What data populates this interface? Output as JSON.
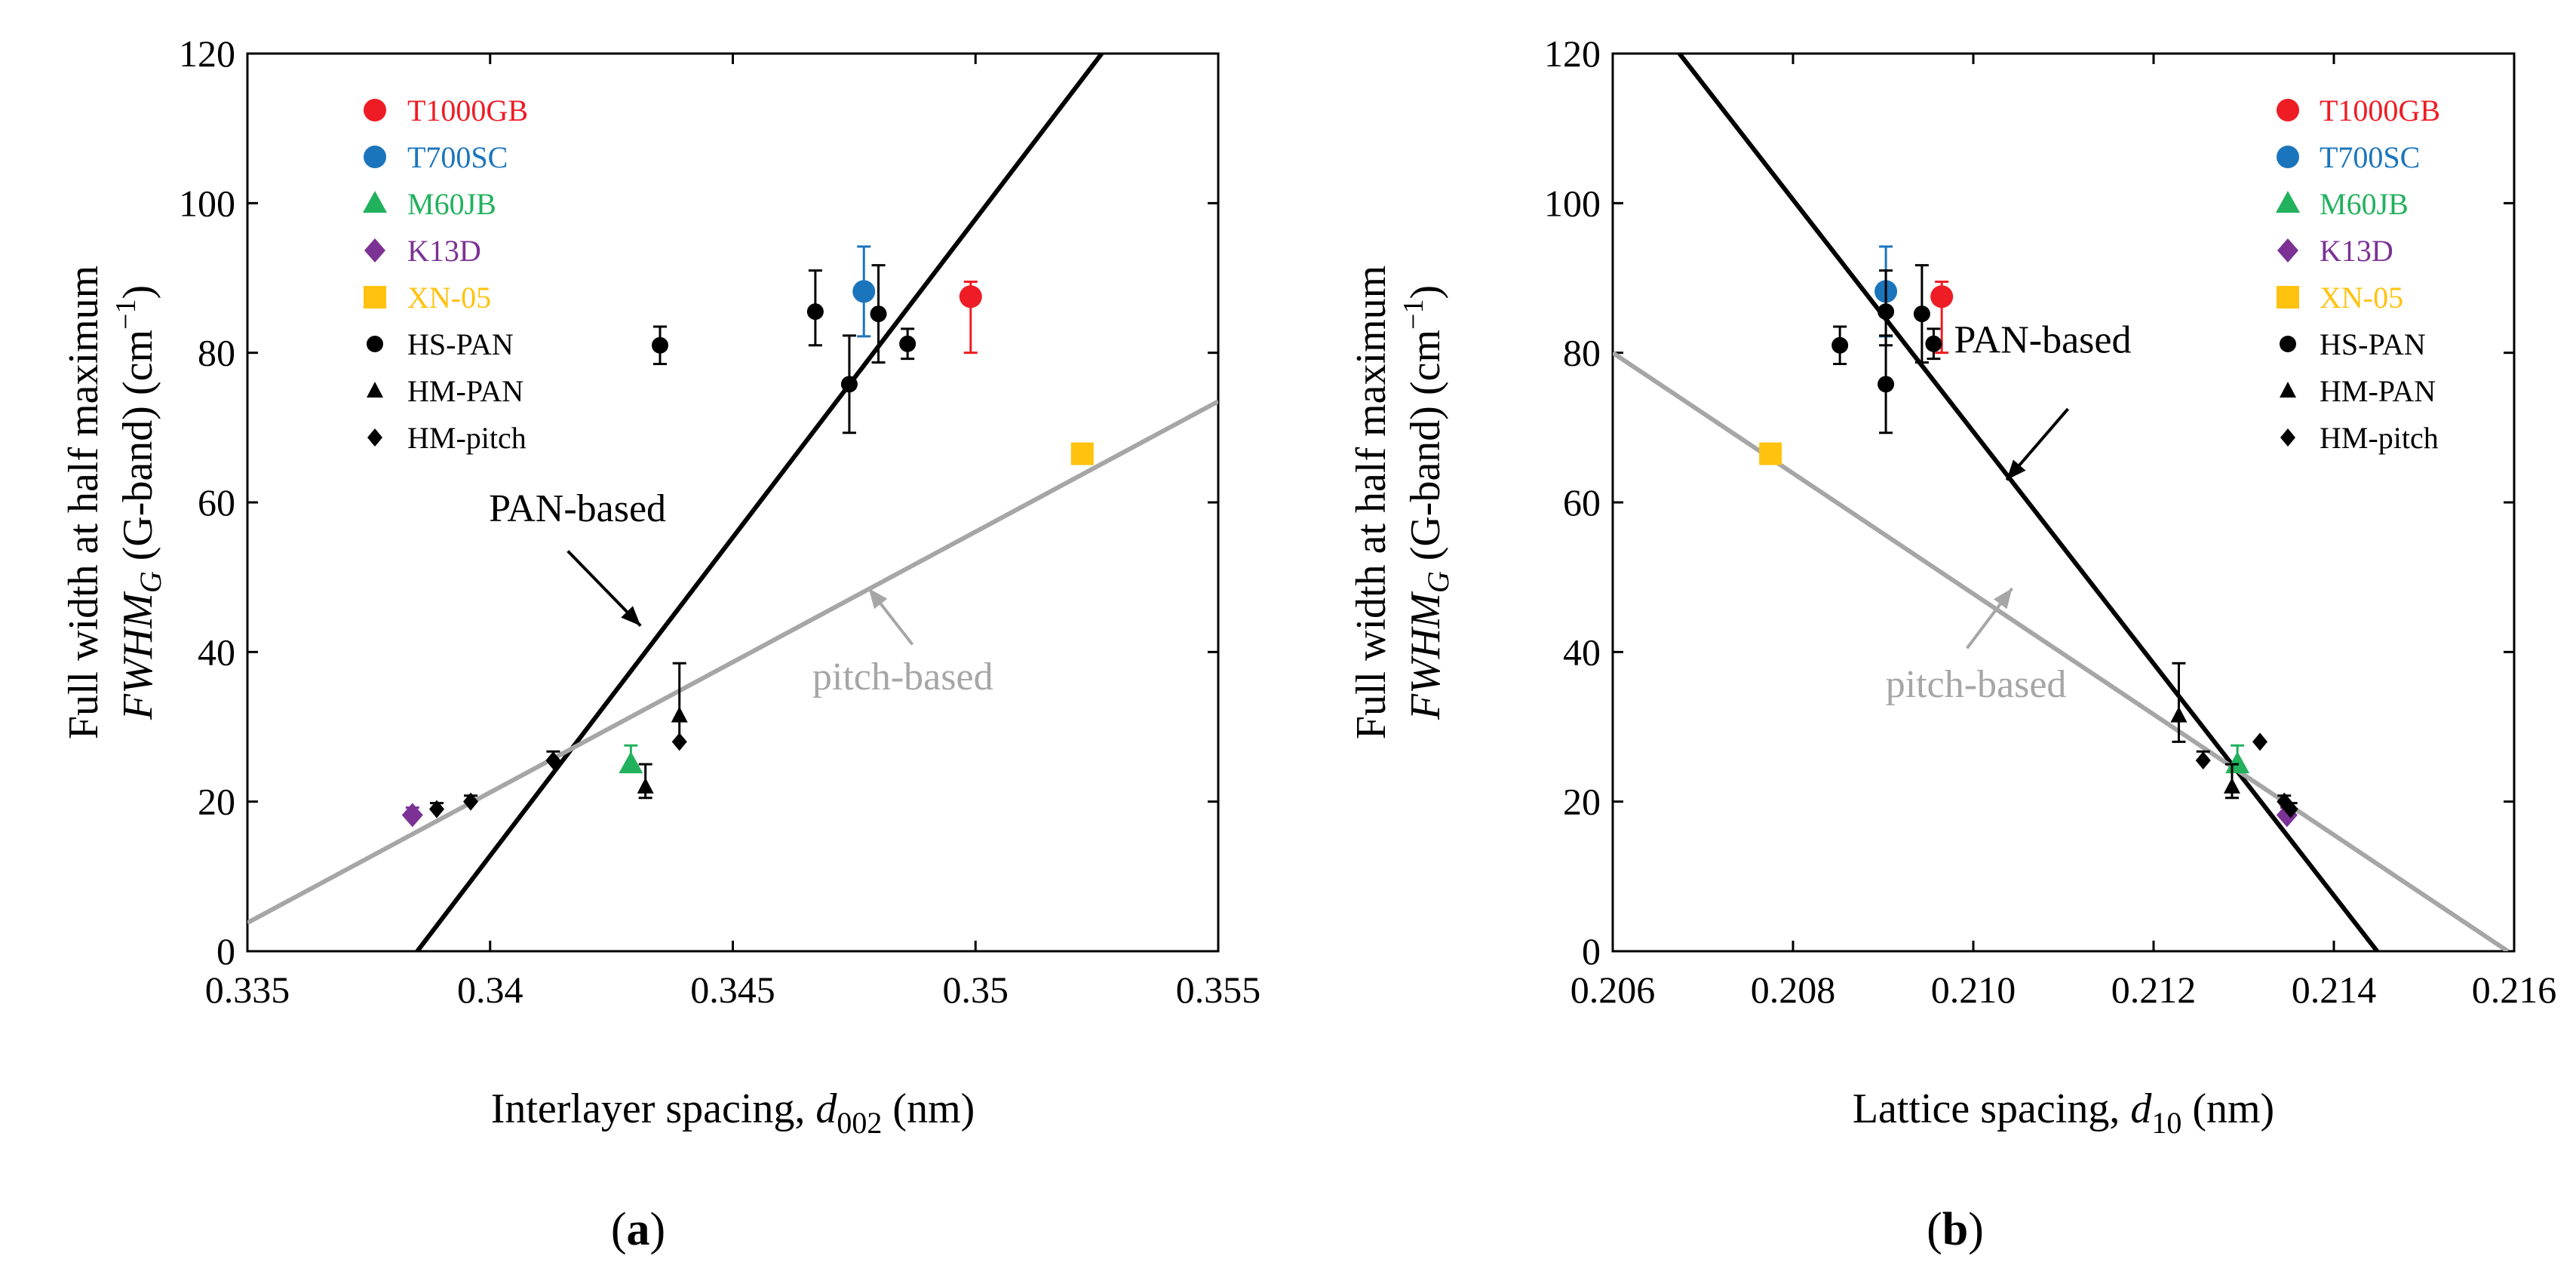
{
  "colors": {
    "T1000GB": "#ee1c24",
    "T700SC": "#1b75bc",
    "M60JB": "#22b15d",
    "K13D": "#7b3294",
    "XN-05": "#ffc20e",
    "black": "#000000",
    "pitch_line": "#a6a6a6"
  },
  "chart_data": [
    {
      "type": "scatter",
      "panel_label": "a",
      "ylabel_line1": "Full width at half maximum",
      "ylabel_var": "FWHM",
      "ylabel_sub": "G",
      "ylabel_rest": " (G-band) (cm",
      "ylabel_sup": "−1",
      "ylabel_end": ")",
      "xlabel_main": "Interlayer spacing, ",
      "xlabel_var": "d",
      "xlabel_sub": "002",
      "xlabel_unit": " (nm)",
      "xlim": [
        0.335,
        0.355
      ],
      "ylim": [
        0,
        120
      ],
      "x_ticks": [
        0.335,
        0.34,
        0.345,
        0.35,
        0.355
      ],
      "x_tick_labels": [
        "0.335",
        "0.34",
        "0.345",
        "0.35",
        "0.355"
      ],
      "y_ticks": [
        0,
        20,
        40,
        60,
        80,
        100,
        120
      ],
      "y_tick_labels": [
        "0",
        "20",
        "40",
        "60",
        "80",
        "100",
        "120"
      ],
      "legend_position": "top-left",
      "legend": [
        {
          "label": "T1000GB",
          "marker": "circle",
          "color": "T1000GB"
        },
        {
          "label": "T700SC",
          "marker": "circle",
          "color": "T700SC"
        },
        {
          "label": "M60JB",
          "marker": "triangle",
          "color": "M60JB"
        },
        {
          "label": "K13D",
          "marker": "diamond",
          "color": "K13D"
        },
        {
          "label": "XN-05",
          "marker": "square",
          "color": "XN-05"
        },
        {
          "label": "HS-PAN",
          "marker": "circle-small",
          "color": "black"
        },
        {
          "label": "HM-PAN",
          "marker": "triangle-small",
          "color": "black"
        },
        {
          "label": "HM-pitch",
          "marker": "diamond-small",
          "color": "black"
        }
      ],
      "series": [
        {
          "name": "T1000GB",
          "marker": "circle",
          "color": "T1000GB",
          "points": [
            {
              "x": 0.3499,
              "y": 87.5,
              "err_lo": 7.5,
              "err_hi": 2
            }
          ]
        },
        {
          "name": "T700SC",
          "marker": "circle",
          "color": "T700SC",
          "points": [
            {
              "x": 0.3477,
              "y": 88.2,
              "err_lo": 6,
              "err_hi": 6
            }
          ]
        },
        {
          "name": "M60JB",
          "marker": "triangle",
          "color": "M60JB",
          "points": [
            {
              "x": 0.3429,
              "y": 25,
              "err_lo": 0,
              "err_hi": 2.5
            }
          ]
        },
        {
          "name": "K13D",
          "marker": "diamond",
          "color": "K13D",
          "points": [
            {
              "x": 0.3384,
              "y": 18.2,
              "err_lo": 0,
              "err_hi": 1
            }
          ]
        },
        {
          "name": "XN-05",
          "marker": "square",
          "color": "XN-05",
          "points": [
            {
              "x": 0.3522,
              "y": 66.5,
              "err_lo": 0,
              "err_hi": 0
            }
          ]
        },
        {
          "name": "HS-PAN",
          "marker": "circle-small",
          "color": "black",
          "points": [
            {
              "x": 0.3435,
              "y": 81,
              "err_lo": 2.5,
              "err_hi": 2.5
            },
            {
              "x": 0.3467,
              "y": 85.5,
              "err_lo": 4.5,
              "err_hi": 5.5
            },
            {
              "x": 0.3474,
              "y": 75.8,
              "err_lo": 6.5,
              "err_hi": 6.5
            },
            {
              "x": 0.348,
              "y": 85.2,
              "err_lo": 6.5,
              "err_hi": 6.5
            },
            {
              "x": 0.3486,
              "y": 81.2,
              "err_lo": 2,
              "err_hi": 2
            }
          ]
        },
        {
          "name": "HM-PAN",
          "marker": "triangle-small",
          "color": "black",
          "points": [
            {
              "x": 0.3432,
              "y": 22,
              "err_lo": 1.5,
              "err_hi": 3
            },
            {
              "x": 0.3439,
              "y": 31.5,
              "err_lo": 3.5,
              "err_hi": 7
            }
          ]
        },
        {
          "name": "HM-pitch",
          "marker": "diamond-small",
          "color": "black",
          "points": [
            {
              "x": 0.3389,
              "y": 19,
              "err_lo": 0,
              "err_hi": 0.8
            },
            {
              "x": 0.3396,
              "y": 20,
              "err_lo": 0,
              "err_hi": 0.8
            },
            {
              "x": 0.3413,
              "y": 25.5,
              "err_lo": 0,
              "err_hi": 1.2
            },
            {
              "x": 0.3439,
              "y": 28,
              "err_lo": 0,
              "err_hi": 0
            }
          ]
        }
      ],
      "fit_lines": [
        {
          "name": "PAN-based",
          "color": "black",
          "from": [
            0.3385,
            0
          ],
          "to": [
            0.3526,
            120
          ]
        },
        {
          "name": "pitch-based",
          "color": "pitch_line",
          "from": [
            0.335,
            3.8
          ],
          "to": [
            0.355,
            73.5
          ]
        }
      ],
      "annotations": [
        {
          "text": "PAN-based",
          "color": "black",
          "label_at": [
            0.3418,
            57.5
          ],
          "arrow_from": [
            0.3416,
            53.5
          ],
          "arrow_to": [
            0.3431,
            43.5
          ]
        },
        {
          "text": "pitch-based",
          "color": "pitch_line",
          "label_at": [
            0.3485,
            35
          ],
          "arrow_from": [
            0.3487,
            41
          ],
          "arrow_to": [
            0.3478,
            48.5
          ]
        }
      ]
    },
    {
      "type": "scatter",
      "panel_label": "b",
      "ylabel_line1": "Full width at half maximum",
      "ylabel_var": "FWHM",
      "ylabel_sub": "G",
      "ylabel_rest": " (G-band) (cm",
      "ylabel_sup": "−1",
      "ylabel_end": ")",
      "xlabel_main": "Lattice spacing, ",
      "xlabel_var": "d",
      "xlabel_sub": "10",
      "xlabel_unit": " (nm)",
      "xlim": [
        0.206,
        0.216
      ],
      "ylim": [
        0,
        120
      ],
      "x_ticks": [
        0.206,
        0.208,
        0.21,
        0.212,
        0.214,
        0.216
      ],
      "x_tick_labels": [
        "0.206",
        "0.208",
        "0.210",
        "0.212",
        "0.214",
        "0.216"
      ],
      "y_ticks": [
        0,
        20,
        40,
        60,
        80,
        100,
        120
      ],
      "y_tick_labels": [
        "0",
        "20",
        "40",
        "60",
        "80",
        "100",
        "120"
      ],
      "legend_position": "top-right",
      "legend": [
        {
          "label": "T1000GB",
          "marker": "circle",
          "color": "T1000GB"
        },
        {
          "label": "T700SC",
          "marker": "circle",
          "color": "T700SC"
        },
        {
          "label": "M60JB",
          "marker": "triangle",
          "color": "M60JB"
        },
        {
          "label": "K13D",
          "marker": "diamond",
          "color": "K13D"
        },
        {
          "label": "XN-05",
          "marker": "square",
          "color": "XN-05"
        },
        {
          "label": "HS-PAN",
          "marker": "circle-small",
          "color": "black"
        },
        {
          "label": "HM-PAN",
          "marker": "triangle-small",
          "color": "black"
        },
        {
          "label": "HM-pitch",
          "marker": "diamond-small",
          "color": "black"
        }
      ],
      "series": [
        {
          "name": "T1000GB",
          "marker": "circle",
          "color": "T1000GB",
          "points": [
            {
              "x": 0.20965,
              "y": 87.5,
              "err_lo": 7.5,
              "err_hi": 2
            }
          ]
        },
        {
          "name": "T700SC",
          "marker": "circle",
          "color": "T700SC",
          "points": [
            {
              "x": 0.20903,
              "y": 88.2,
              "err_lo": 6,
              "err_hi": 6
            }
          ]
        },
        {
          "name": "M60JB",
          "marker": "triangle",
          "color": "M60JB",
          "points": [
            {
              "x": 0.21293,
              "y": 25,
              "err_lo": 0,
              "err_hi": 2.5
            }
          ]
        },
        {
          "name": "K13D",
          "marker": "diamond",
          "color": "K13D",
          "points": [
            {
              "x": 0.21348,
              "y": 18.2,
              "err_lo": 0,
              "err_hi": 1
            }
          ]
        },
        {
          "name": "XN-05",
          "marker": "square",
          "color": "XN-05",
          "points": [
            {
              "x": 0.20775,
              "y": 66.5,
              "err_lo": 0,
              "err_hi": 0
            }
          ]
        },
        {
          "name": "HS-PAN",
          "marker": "circle-small",
          "color": "black",
          "points": [
            {
              "x": 0.20852,
              "y": 81,
              "err_lo": 2.5,
              "err_hi": 2.5
            },
            {
              "x": 0.20903,
              "y": 85.5,
              "err_lo": 4.5,
              "err_hi": 5.5
            },
            {
              "x": 0.20903,
              "y": 75.8,
              "err_lo": 6.5,
              "err_hi": 6.5
            },
            {
              "x": 0.20943,
              "y": 85.2,
              "err_lo": 6.5,
              "err_hi": 6.5
            },
            {
              "x": 0.20956,
              "y": 81.2,
              "err_lo": 2,
              "err_hi": 2
            }
          ]
        },
        {
          "name": "HM-PAN",
          "marker": "triangle-small",
          "color": "black",
          "points": [
            {
              "x": 0.21228,
              "y": 31.5,
              "err_lo": 3.5,
              "err_hi": 7
            },
            {
              "x": 0.21287,
              "y": 22,
              "err_lo": 1.5,
              "err_hi": 3
            }
          ]
        },
        {
          "name": "HM-pitch",
          "marker": "diamond-small",
          "color": "black",
          "points": [
            {
              "x": 0.21255,
              "y": 25.5,
              "err_lo": 0,
              "err_hi": 1.2
            },
            {
              "x": 0.21318,
              "y": 28,
              "err_lo": 0,
              "err_hi": 0
            },
            {
              "x": 0.21345,
              "y": 20,
              "err_lo": 0,
              "err_hi": 0.8
            },
            {
              "x": 0.21352,
              "y": 19,
              "err_lo": 0,
              "err_hi": 0.8
            }
          ]
        }
      ],
      "fit_lines": [
        {
          "name": "PAN-based",
          "color": "black",
          "from": [
            0.20674,
            120
          ],
          "to": [
            0.21448,
            0
          ]
        },
        {
          "name": "pitch-based",
          "color": "pitch_line",
          "from": [
            0.206,
            80
          ],
          "to": [
            0.21593,
            0
          ]
        }
      ],
      "annotations": [
        {
          "text": "PAN-based",
          "color": "black",
          "label_at": [
            0.21077,
            80
          ],
          "arrow_from": [
            0.21105,
            72.5
          ],
          "arrow_to": [
            0.21037,
            63
          ]
        },
        {
          "text": "pitch-based",
          "color": "pitch_line",
          "label_at": [
            0.21003,
            34
          ],
          "arrow_from": [
            0.20993,
            40.5
          ],
          "arrow_to": [
            0.21043,
            48.5
          ]
        }
      ]
    }
  ]
}
